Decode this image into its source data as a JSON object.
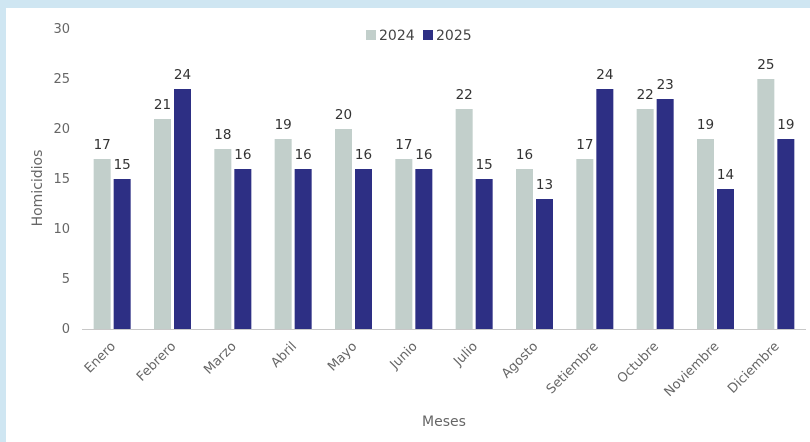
{
  "chart_data": {
    "type": "bar",
    "title": "",
    "xlabel": "Meses",
    "ylabel": "Homicidios",
    "ylim": [
      0,
      30
    ],
    "yticks": [
      0,
      5,
      10,
      15,
      20,
      25,
      30
    ],
    "grid": false,
    "legend_position": "top-center",
    "categories": [
      "Enero",
      "Febrero",
      "Marzo",
      "Abril",
      "Mayo",
      "Junio",
      "Julio",
      "Agosto",
      "Setiembre",
      "Octubre",
      "Noviembre",
      "Diciembre"
    ],
    "series": [
      {
        "name": "2024",
        "color": "#c2cfcb",
        "values": [
          17,
          21,
          18,
          19,
          20,
          17,
          22,
          16,
          17,
          22,
          19,
          25
        ]
      },
      {
        "name": "2025",
        "color": "#2d2f84",
        "values": [
          15,
          24,
          16,
          16,
          16,
          16,
          15,
          13,
          24,
          23,
          14,
          19
        ]
      }
    ]
  },
  "colors": {
    "background": "#cfe6f2",
    "panel": "#ffffff",
    "axis": "#c8c8c8"
  }
}
